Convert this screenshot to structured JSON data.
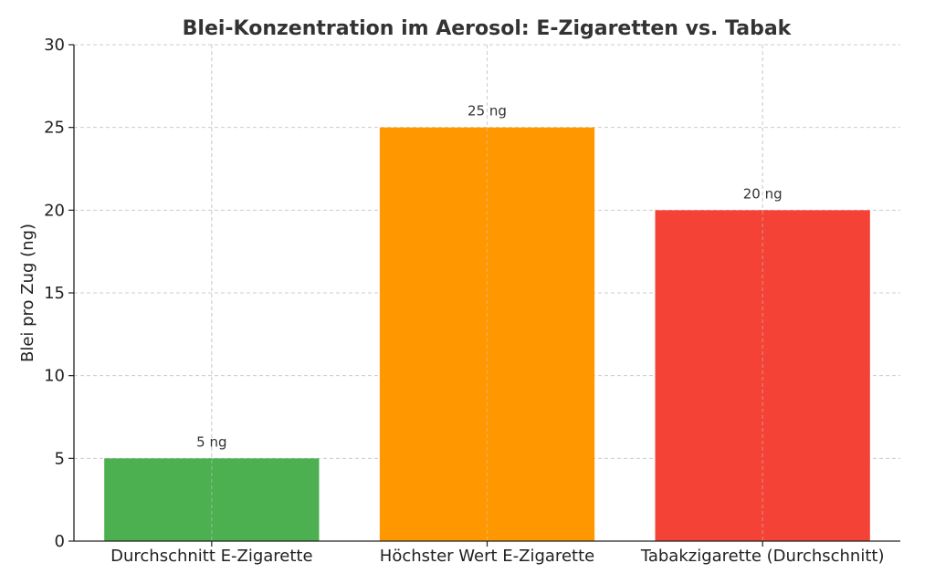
{
  "chart_data": {
    "type": "bar",
    "title": "Blei-Konzentration im Aerosol: E-Zigaretten vs. Tabak",
    "xlabel": "",
    "ylabel": "Blei pro Zug (ng)",
    "ylim": [
      0,
      30
    ],
    "yticks": [
      0,
      5,
      10,
      15,
      20,
      25,
      30
    ],
    "categories": [
      "Durchschnitt E-Zigarette",
      "Höchster Wert E-Zigarette",
      "Tabakzigarette (Durchschnitt)"
    ],
    "values": [
      5,
      25,
      20
    ],
    "data_labels": [
      "5 ng",
      "25 ng",
      "20 ng"
    ],
    "colors": [
      "#4caf50",
      "#ff9800",
      "#f44336"
    ],
    "grid": true,
    "legend": "none"
  }
}
